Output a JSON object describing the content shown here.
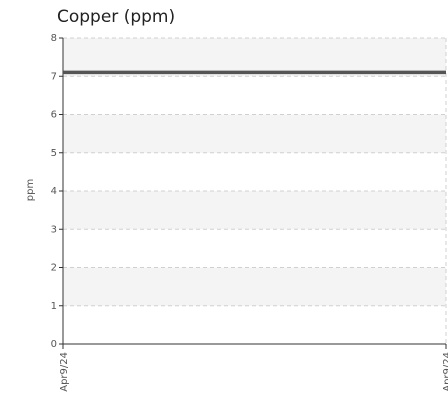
{
  "chart_data": {
    "type": "line",
    "title": "Copper (ppm)",
    "xlabel": "",
    "ylabel": "ppm",
    "ylim": [
      0,
      8
    ],
    "yticks": [
      "0",
      "1",
      "2",
      "3",
      "4",
      "5",
      "6",
      "7",
      "8"
    ],
    "xticks": [
      "Apr9/24",
      "Apr9/24"
    ],
    "grid": true,
    "series": [
      {
        "x": [
          "Apr9/24",
          "Apr9/24"
        ],
        "values": [
          7.1,
          7.1
        ]
      }
    ],
    "colors": {
      "line": "#555555",
      "band": "#f4f4f4",
      "grid": "#d0d0d0",
      "axis": "#333333"
    }
  }
}
